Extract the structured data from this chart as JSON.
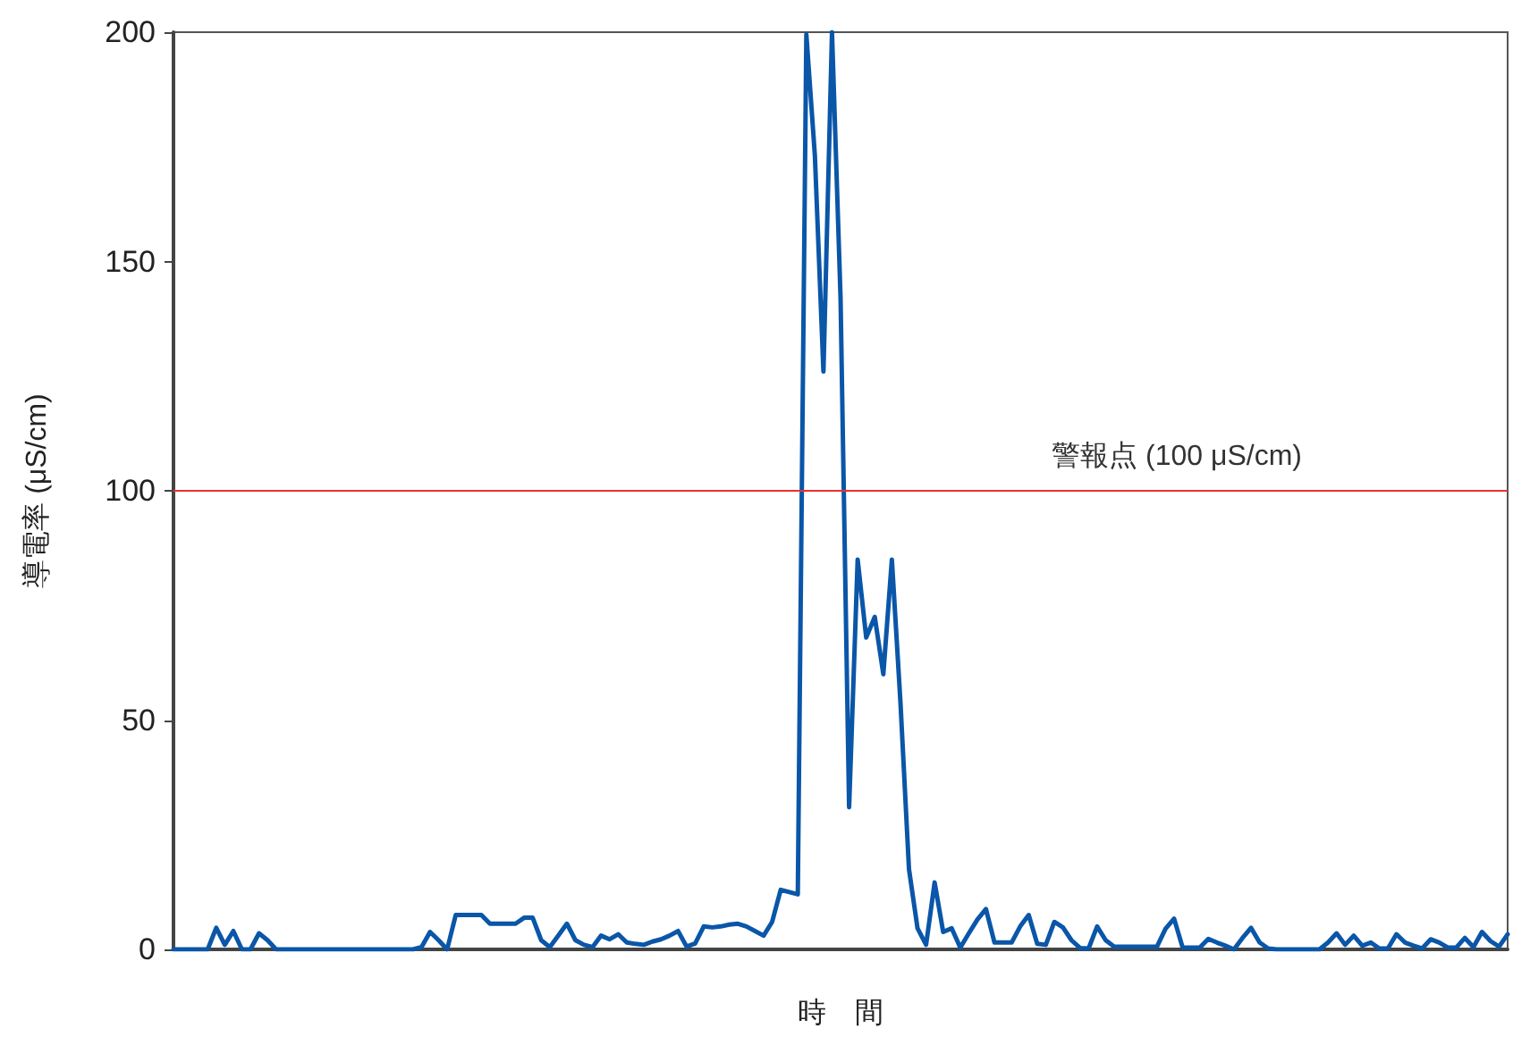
{
  "chart_data": {
    "type": "line",
    "xlabel": "時　間",
    "ylabel": "導電率 (μS/cm)",
    "categories": [
      null,
      null,
      null,
      null,
      null,
      null,
      null,
      null,
      null,
      null,
      null,
      null,
      null,
      null,
      null,
      null,
      null,
      null,
      null,
      null,
      null,
      null,
      null,
      null,
      null,
      null,
      null,
      null,
      null,
      null,
      null,
      null,
      null,
      null,
      null,
      null,
      null,
      null,
      null,
      null,
      null,
      null,
      null,
      null,
      null,
      null,
      null,
      null,
      null,
      null,
      null,
      null,
      null,
      null,
      null,
      null,
      null,
      null,
      null,
      null,
      null,
      null,
      null,
      null,
      null,
      null,
      null,
      null,
      null,
      null,
      null,
      null,
      null,
      null,
      null,
      null,
      null,
      null,
      null,
      null,
      null,
      null,
      null,
      null,
      null,
      null,
      null,
      null,
      null,
      null,
      null,
      null,
      null,
      null,
      null,
      null,
      null,
      null,
      null,
      null,
      null,
      null,
      null,
      null,
      null,
      null,
      null,
      null,
      null,
      null,
      null,
      null,
      null,
      null,
      null,
      null,
      null,
      null,
      null,
      null,
      null,
      null,
      null,
      null,
      null,
      null,
      null,
      null,
      null,
      null,
      null,
      null,
      null,
      null,
      null,
      null,
      null,
      null,
      null,
      null,
      null,
      null,
      null,
      null,
      null,
      null,
      null,
      null,
      null,
      null,
      null,
      null,
      null,
      null,
      null,
      null,
      null
    ],
    "series": [
      {
        "color": "#0a56a8",
        "values": [
          0,
          0,
          0,
          0,
          0,
          4.7,
          1,
          4,
          0,
          0,
          3.5,
          2,
          0,
          0,
          0,
          0,
          0,
          0,
          0,
          0,
          0,
          0,
          0,
          0,
          0,
          0,
          0,
          0,
          0,
          0.5,
          3.8,
          2,
          0,
          7.5,
          7.5,
          7.5,
          7.5,
          5.6,
          5.6,
          5.6,
          5.6,
          6.9,
          6.9,
          2,
          0.5,
          3,
          5.6,
          2,
          1,
          0.5,
          3,
          2.2,
          3.3,
          1.5,
          1.2,
          1,
          1.7,
          2.2,
          3,
          4,
          0.6,
          1.3,
          5,
          4.8,
          5,
          5.4,
          5.6,
          5,
          4,
          3,
          6,
          13,
          12.5,
          12,
          199.5,
          173,
          126,
          200,
          142,
          31,
          85,
          68,
          72.5,
          60,
          85,
          54,
          17.5,
          4.6,
          1,
          14.6,
          3.8,
          4.6,
          0.4,
          3.5,
          6.5,
          8.8,
          1.5,
          1.5,
          1.5,
          5,
          7.5,
          1.2,
          1,
          6,
          4.8,
          2,
          0.3,
          0.2,
          5,
          2,
          0.6,
          0.6,
          0.6,
          0.6,
          0.6,
          0.6,
          4.5,
          6.7,
          0.4,
          0.4,
          0.4,
          2.3,
          1.5,
          0.8,
          0,
          2.5,
          4.7,
          1.5,
          0.2,
          0,
          0,
          0,
          0,
          0,
          0,
          1.5,
          3.5,
          1,
          3,
          0.8,
          1.5,
          0.2,
          0.2,
          3.3,
          1.5,
          0.8,
          0.2,
          2.2,
          1.5,
          0.4,
          0.4,
          2.5,
          0.5,
          3.8,
          1.8,
          0.6,
          3.3
        ]
      }
    ],
    "ylim": [
      0,
      200
    ],
    "yticks": [
      0,
      50,
      100,
      150,
      200
    ],
    "marker": "none",
    "line_style": "solid",
    "ref_lines": [
      {
        "axis": "y",
        "value": 100,
        "label": "警報点 (100 μS/cm)",
        "color": "#e8302f"
      }
    ]
  }
}
